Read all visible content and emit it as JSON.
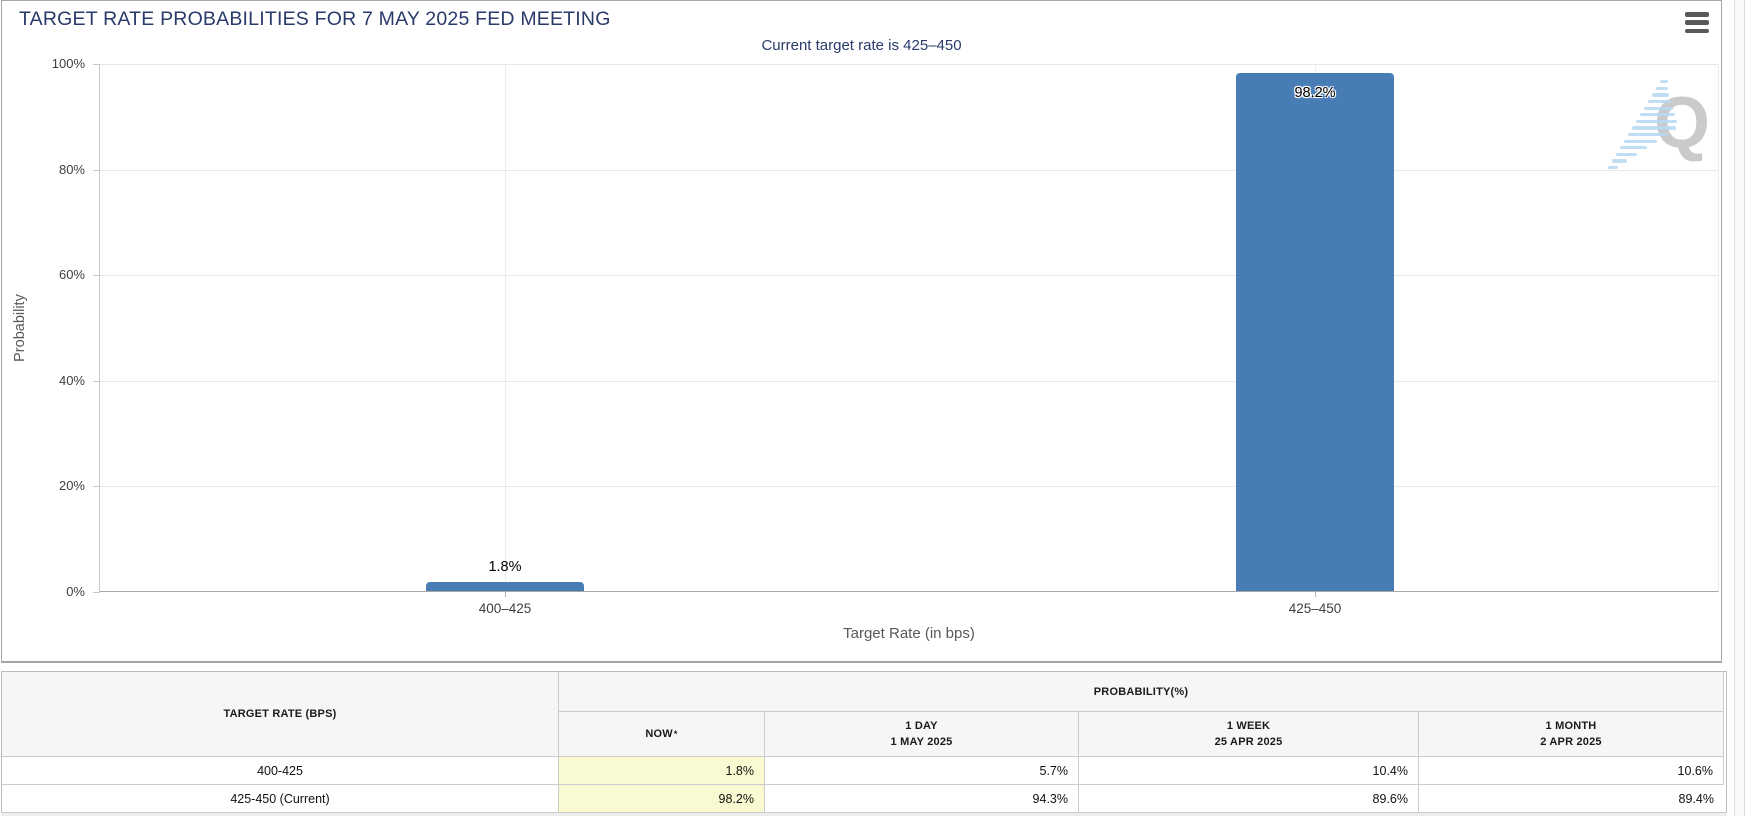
{
  "header": {
    "title": "TARGET RATE PROBABILITIES FOR 7 MAY 2025 FED MEETING"
  },
  "chart_data": {
    "type": "bar",
    "title": "Current target rate is 425–450",
    "categories": [
      "400–425",
      "425–450"
    ],
    "values": [
      1.8,
      98.2
    ],
    "bar_labels": [
      "1.8%",
      "98.2%"
    ],
    "xlabel": "Target Rate (in bps)",
    "ylabel": "Probability",
    "ylim": [
      0,
      100
    ],
    "yticks": [
      {
        "value": 0,
        "label": "0%"
      },
      {
        "value": 20,
        "label": "20%"
      },
      {
        "value": 40,
        "label": "40%"
      },
      {
        "value": 60,
        "label": "60%"
      },
      {
        "value": 80,
        "label": "80%"
      },
      {
        "value": 100,
        "label": "100%"
      }
    ],
    "grid": true,
    "legend": "none",
    "bar_color": "#477CB5"
  },
  "watermark": {
    "letter": "Q"
  },
  "colors": {
    "bar": "#477CB5",
    "title_text": "#293A6B",
    "now_highlight": "#FAFAD2"
  },
  "table": {
    "col1_header": "TARGET RATE (BPS)",
    "group_header": "PROBABILITY(%)",
    "now_header": {
      "label": "NOW",
      "asterisk": "*"
    },
    "history_headers": [
      {
        "line1": "1 DAY",
        "line2": "1 MAY 2025"
      },
      {
        "line1": "1 WEEK",
        "line2": "25 APR 2025"
      },
      {
        "line1": "1 MONTH",
        "line2": "2 APR 2025"
      }
    ],
    "rows": [
      {
        "target_rate": "400-425",
        "now": "1.8%",
        "one_day": "5.7%",
        "one_week": "10.4%",
        "one_month": "10.6%"
      },
      {
        "target_rate": "425-450 (Current)",
        "now": "98.2%",
        "one_day": "94.3%",
        "one_week": "89.6%",
        "one_month": "89.4%"
      }
    ]
  }
}
